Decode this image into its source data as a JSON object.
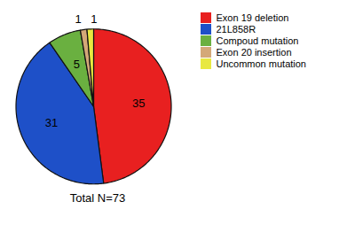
{
  "chart_data": {
    "type": "pie",
    "categories": [
      "Exon 19 deletion",
      "21L858R",
      "Compoud mutation",
      "Exon 20 insertion",
      "Uncommon mutation"
    ],
    "values": [
      35,
      31,
      5,
      1,
      1
    ],
    "colors": [
      "#e82020",
      "#1e50c8",
      "#6ab040",
      "#d4a878",
      "#e8e840"
    ],
    "data_labels": true,
    "legend": "right",
    "annotations": [
      "Total N=73"
    ]
  }
}
